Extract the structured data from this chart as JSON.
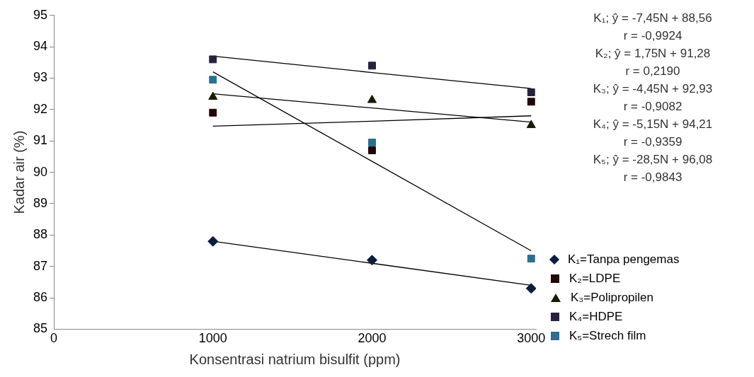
{
  "chart_data": {
    "type": "scatter",
    "xlabel": "Konsentrasi natrium bisulfit (ppm)",
    "ylabel": "Kadar air (%)",
    "x": [
      1000,
      2000,
      3000
    ],
    "xlim": [
      0,
      3030
    ],
    "xticks": [
      0,
      1000,
      2000,
      3000
    ],
    "ylim": [
      85,
      95
    ],
    "yticks": [
      85,
      86,
      87,
      88,
      89,
      90,
      91,
      92,
      93,
      94,
      95
    ],
    "grid": false,
    "legend": "right",
    "series": [
      {
        "name": "K₁=Tanpa pengemas",
        "color": "#0d1b3e",
        "marker": "diamond",
        "values": [
          87.8,
          87.2,
          86.3
        ]
      },
      {
        "name": "K₂=LDPE",
        "color": "#200808",
        "marker": "square",
        "values": [
          91.9,
          90.7,
          92.25
        ]
      },
      {
        "name": "K₃=Polipropilen",
        "color": "#1a1a00",
        "marker": "triangle",
        "values": [
          92.4,
          92.3,
          91.5
        ]
      },
      {
        "name": "K₄=HDPE",
        "color": "#2a1f3d",
        "marker": "square",
        "values": [
          93.6,
          93.4,
          92.55
        ]
      },
      {
        "name": "K₅=Strech film",
        "color": "#2a6f8f",
        "marker": "square",
        "values": [
          92.95,
          90.95,
          87.25
        ]
      },
      {
        "type": "line",
        "color": "#000000",
        "marker": "none",
        "values": [
          87.8,
          87.1,
          86.4
        ]
      },
      {
        "type": "line",
        "color": "#000000",
        "marker": "none",
        "values": [
          91.47,
          91.63,
          91.8
        ]
      },
      {
        "type": "line",
        "color": "#000000",
        "marker": "none",
        "values": [
          92.5,
          92.05,
          91.6
        ]
      },
      {
        "type": "line",
        "color": "#000000",
        "marker": "none",
        "values": [
          93.7,
          93.18,
          92.67
        ]
      },
      {
        "type": "line",
        "color": "#000000",
        "marker": "none",
        "values": [
          93.2,
          90.35,
          87.5
        ]
      }
    ],
    "annotations": [
      "K₁; ŷ = -7,45N + 88,56",
      "r = -0,9924",
      "K₂; ŷ = 1,75N + 91,28",
      "r = 0,2190",
      "K₃; ŷ = -4,45N + 92,93",
      "r = -0,9082",
      "K₄; ŷ = -5,15N + 94,21",
      "r = -0,9359",
      "K₅; ŷ = -28,5N + 96,08",
      "r = -0,9843"
    ]
  }
}
